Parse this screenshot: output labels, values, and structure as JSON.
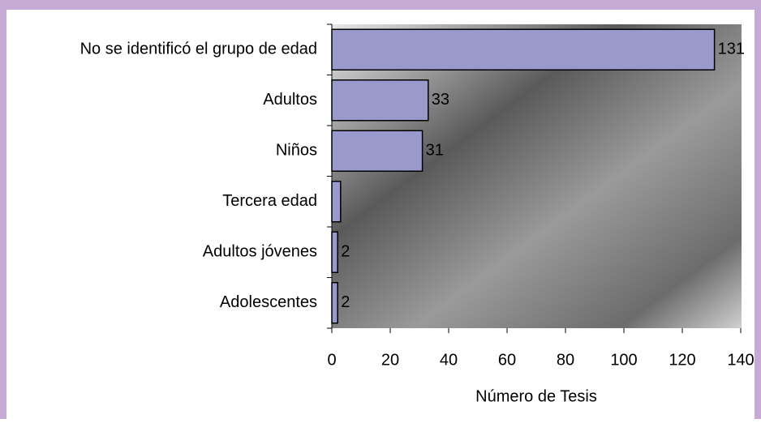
{
  "chart_data": {
    "type": "barh",
    "categories": [
      "No se identificó el grupo de edad",
      "Adultos",
      "Niños",
      "Tercera edad",
      "Adultos jóvenes",
      "Adolescentes"
    ],
    "values": [
      131,
      33,
      31,
      3,
      2,
      2
    ],
    "labeled": [
      true,
      true,
      true,
      false,
      true,
      true
    ],
    "color": "#9999cc",
    "xlabel": "Número de Tesis",
    "xlim": [
      0,
      140
    ],
    "xticks": [
      0,
      20,
      40,
      60,
      80,
      100,
      120,
      140
    ]
  }
}
